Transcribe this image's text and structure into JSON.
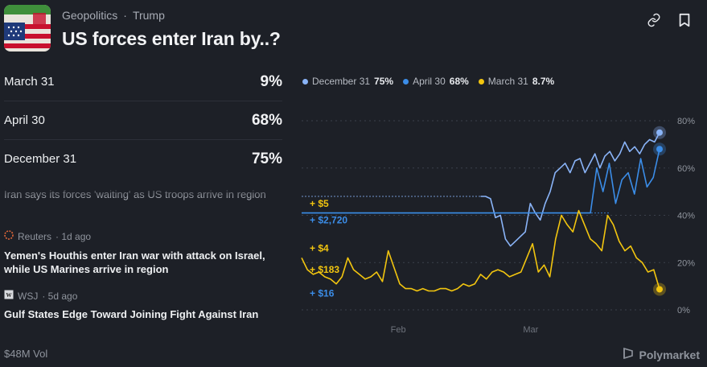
{
  "header": {
    "breadcrumb": [
      "Geopolitics",
      "Trump"
    ],
    "separator": "·",
    "title": "US forces enter Iran by..?"
  },
  "outcomes": [
    {
      "label": "March 31",
      "percent": "9%"
    },
    {
      "label": "April 30",
      "percent": "68%"
    },
    {
      "label": "December 31",
      "percent": "75%"
    }
  ],
  "news": {
    "faded_text": "Iran says its forces 'waiting' as US troops arrive in region",
    "items": [
      {
        "source": "Reuters",
        "time": "· 1d ago",
        "headline": "Yemen's Houthis enter Iran war with attack on Israel, while US Marines arrive in region"
      },
      {
        "source": "WSJ",
        "time": "· 5d ago",
        "headline": "Gulf States Edge Toward Joining Fight Against Iran"
      }
    ]
  },
  "footer": {
    "volume": "$48M Vol",
    "brand": "Polymarket"
  },
  "legend": [
    {
      "label": "December 31",
      "value": "75%",
      "color": "#8ab4f8"
    },
    {
      "label": "April 30",
      "value": "68%",
      "color": "#3b8de8"
    },
    {
      "label": "March 31",
      "value": "8.7%",
      "color": "#f2c50f"
    }
  ],
  "chart_data": {
    "type": "line",
    "ylim": [
      0,
      80
    ],
    "y_ticks": [
      "0%",
      "20%",
      "40%",
      "60%",
      "80%"
    ],
    "x_ticks": [
      "Feb",
      "Mar"
    ],
    "trade_labels": [
      {
        "text": "+ $5",
        "color": "#f2c50f",
        "y": 45
      },
      {
        "text": "+ $2,720",
        "color": "#3b8de8",
        "y": 38
      },
      {
        "text": "+ $4",
        "color": "#f2c50f",
        "y": 26
      },
      {
        "text": "+ $183",
        "color": "#f2c50f",
        "y": 17
      },
      {
        "text": "+ $16",
        "color": "#3b8de8",
        "y": 7
      }
    ],
    "series": [
      {
        "name": "December 31",
        "color": "#8ab4f8",
        "start": 0.5,
        "end": 1.0,
        "values": [
          48,
          48,
          47,
          39,
          40,
          30,
          27,
          29,
          31,
          33,
          45,
          41,
          38,
          45,
          50,
          58,
          60,
          62,
          58,
          63,
          64,
          58,
          62,
          66,
          60,
          65,
          67,
          63,
          66,
          71,
          67,
          69,
          66,
          70,
          72,
          71,
          75
        ]
      },
      {
        "name": "April 30",
        "color": "#3b8de8",
        "start": 0.0,
        "end": 1.0,
        "values": [
          41,
          41,
          41,
          41,
          41,
          41,
          41,
          41,
          41,
          41,
          41,
          41,
          41,
          41,
          41,
          41,
          41,
          41,
          41,
          41,
          41,
          41,
          41,
          41,
          41,
          41,
          41,
          41,
          41,
          41,
          41,
          41,
          41,
          41,
          41,
          41,
          41,
          41,
          41,
          41,
          41,
          41,
          41,
          41,
          41,
          41,
          41,
          60,
          50,
          62,
          45,
          55,
          58,
          49,
          64,
          52,
          56,
          68
        ]
      },
      {
        "name": "March 31",
        "color": "#f2c50f",
        "start": 0.0,
        "end": 1.0,
        "values": [
          22,
          17,
          15,
          16,
          14,
          13,
          11,
          14,
          22,
          17,
          15,
          13,
          14,
          16,
          12,
          25,
          18,
          11,
          9,
          9,
          8,
          9,
          8,
          8,
          9,
          9,
          8,
          9,
          11,
          10,
          11,
          15,
          13,
          16,
          17,
          16,
          14,
          15,
          16,
          22,
          28,
          16,
          19,
          14,
          30,
          40,
          36,
          33,
          42,
          36,
          30,
          28,
          25,
          40,
          36,
          29,
          25,
          27,
          22,
          20,
          16,
          17,
          8.7
        ]
      }
    ]
  }
}
